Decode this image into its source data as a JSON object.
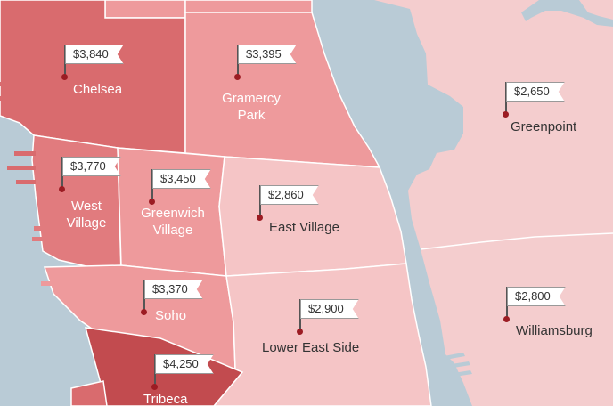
{
  "colors": {
    "water": "#b9cbd6",
    "tier_dark": "#c24b4f",
    "tier_strong": "#d96b6e",
    "tier_mid": "#e17b7e",
    "tier_soft": "#ee9a9c",
    "tier_light": "#f5c5c6",
    "tier_pale": "#f4cdce",
    "pin_dot": "#9c1c23"
  },
  "neighborhoods": [
    {
      "id": "chelsea",
      "name": "Chelsea",
      "price": "$3,840"
    },
    {
      "id": "gramercy",
      "name": "Gramercy Park",
      "price": "$3,395"
    },
    {
      "id": "greenpoint",
      "name": "Greenpoint",
      "price": "$2,650"
    },
    {
      "id": "west-village",
      "name": "West Village",
      "price": "$3,770"
    },
    {
      "id": "greenwich",
      "name": "Greenwich Village",
      "price": "$3,450"
    },
    {
      "id": "east-village",
      "name": "East Village",
      "price": "$2,860"
    },
    {
      "id": "soho",
      "name": "Soho",
      "price": "$3,370"
    },
    {
      "id": "les",
      "name": "Lower East Side",
      "price": "$2,900"
    },
    {
      "id": "williamsburg",
      "name": "Williamsburg",
      "price": "$2,800"
    },
    {
      "id": "tribeca",
      "name": "Tribeca",
      "price": "$4,250"
    }
  ]
}
